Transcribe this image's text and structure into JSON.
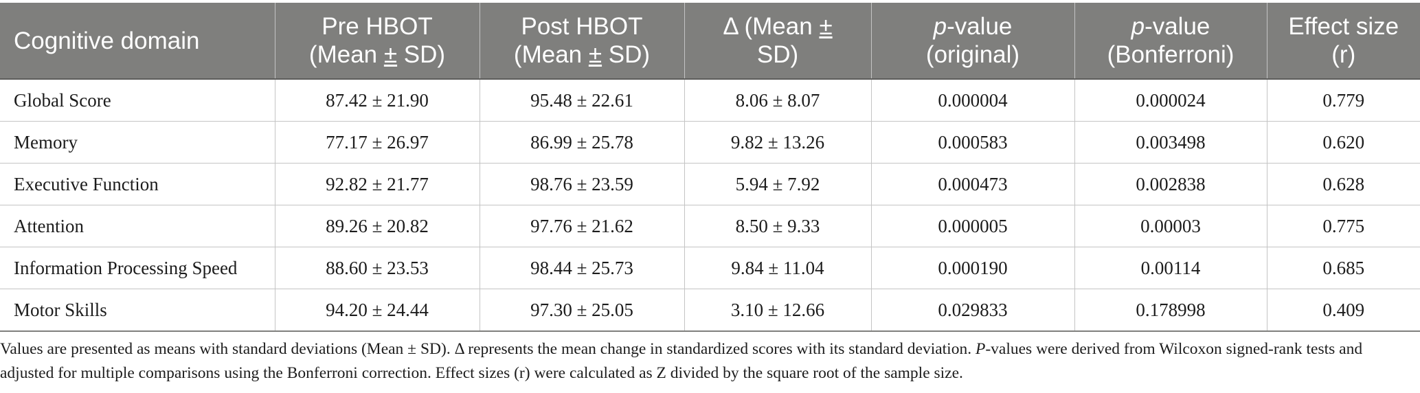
{
  "table": {
    "columns": [
      {
        "line1": "Cognitive domain",
        "line2": ""
      },
      {
        "line1": "Pre HBOT",
        "line2": "(Mean ± SD)"
      },
      {
        "line1": "Post HBOT",
        "line2": "(Mean ± SD)"
      },
      {
        "line1": "Δ (Mean ±",
        "line2": "SD)"
      },
      {
        "line1": "p-value",
        "line2": "(original)"
      },
      {
        "line1": "p-value",
        "line2": "(Bonferroni)"
      },
      {
        "line1": "Effect size",
        "line2": "(r)"
      }
    ],
    "rows": [
      [
        "Global Score",
        "87.42 ± 21.90",
        "95.48 ± 22.61",
        "8.06 ± 8.07",
        "0.000004",
        "0.000024",
        "0.779"
      ],
      [
        "Memory",
        "77.17 ± 26.97",
        "86.99 ± 25.78",
        "9.82 ± 13.26",
        "0.000583",
        "0.003498",
        "0.620"
      ],
      [
        "Executive Function",
        "92.82 ± 21.77",
        "98.76 ± 23.59",
        "5.94 ± 7.92",
        "0.000473",
        "0.002838",
        "0.628"
      ],
      [
        "Attention",
        "89.26 ± 20.82",
        "97.76 ± 21.62",
        "8.50 ± 9.33",
        "0.000005",
        "0.00003",
        "0.775"
      ],
      [
        "Information Processing Speed",
        "88.60 ± 23.53",
        "98.44 ± 25.73",
        "9.84 ± 11.04",
        "0.000190",
        "0.00114",
        "0.685"
      ],
      [
        "Motor Skills",
        "94.20 ± 24.44",
        "97.30 ± 25.05",
        "3.10 ± 12.66",
        "0.029833",
        "0.178998",
        "0.409"
      ]
    ]
  },
  "footnote": "Values are presented as means with standard deviations (Mean ± SD). Δ represents the mean change in standardized scores with its standard deviation. P-values were derived from Wilcoxon signed-rank tests and adjusted for multiple comparisons using the Bonferroni correction. Effect sizes (r) were calculated as Z divided by the square root of the sample size."
}
